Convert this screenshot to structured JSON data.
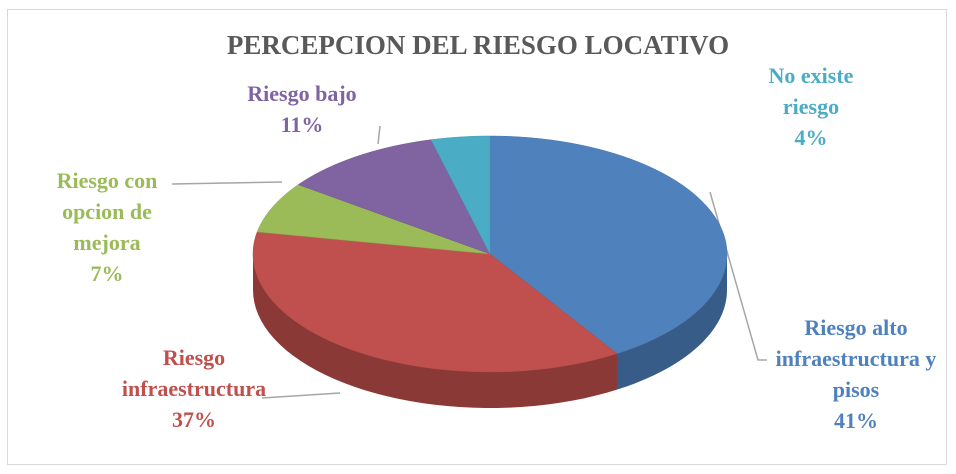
{
  "chart_data": {
    "type": "pie3d",
    "title": "PERCEPCION DEL RIESGO LOCATIVO",
    "categories": [
      "Riesgo alto infraestructura y pisos",
      "Riesgo infraestructura",
      "Riesgo con opcion de mejora",
      "Riesgo bajo",
      "No existe riesgo"
    ],
    "values": [
      41,
      37,
      7,
      11,
      4
    ],
    "value_labels": [
      "41%",
      "37%",
      "7%",
      "11%",
      "4%"
    ],
    "colors": [
      "#4f81bd",
      "#c0504d",
      "#9bbb59",
      "#8064a2",
      "#4bacc6"
    ]
  }
}
